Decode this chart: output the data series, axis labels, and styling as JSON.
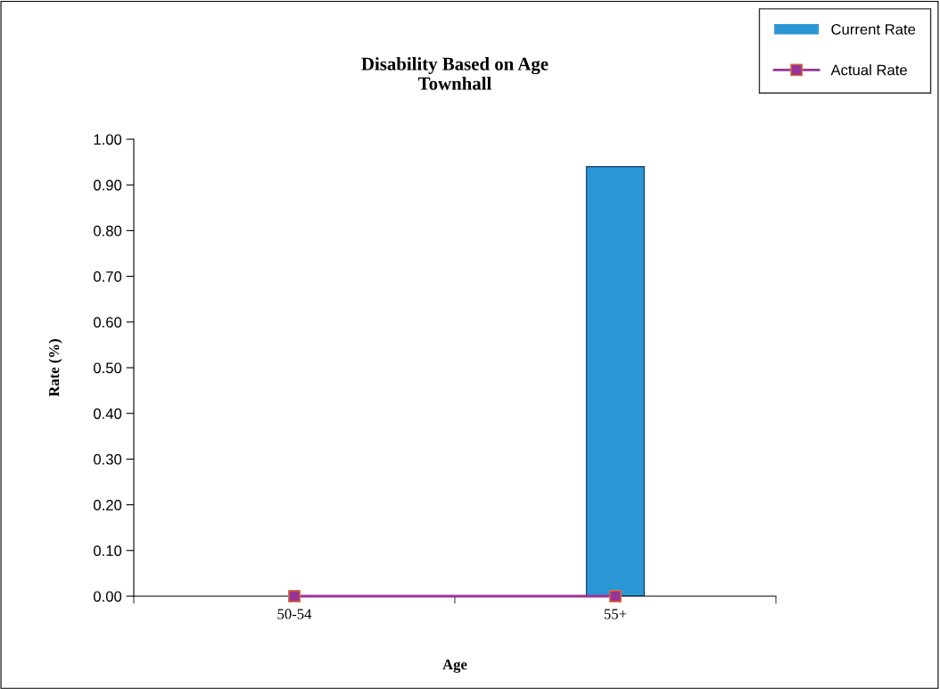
{
  "chart_data": {
    "type": "bar",
    "title": "Disability Based on Age\nTownhall",
    "xlabel": "Age",
    "ylabel": "Rate (%)",
    "categories": [
      "50-54",
      "55+"
    ],
    "series": [
      {
        "name": "Current Rate",
        "color": "#2b96d6",
        "values": [
          0,
          0.94
        ]
      },
      {
        "name": "Actual Rate",
        "type": "line",
        "color": "#993399",
        "values": [
          0,
          0
        ],
        "marker": "square",
        "line_style": "solid"
      }
    ],
    "ylim": [
      0,
      1
    ],
    "yticks": [
      {
        "value": 0,
        "label": "0.00"
      },
      {
        "value": 0.1,
        "label": "0.10"
      },
      {
        "value": 0.2,
        "label": "0.20"
      },
      {
        "value": 0.3,
        "label": "0.30"
      },
      {
        "value": 0.4,
        "label": "0.40"
      },
      {
        "value": 0.5,
        "label": "0.50"
      },
      {
        "value": 0.6,
        "label": "0.60"
      },
      {
        "value": 0.7,
        "label": "0.70"
      },
      {
        "value": 0.8,
        "label": "0.80"
      },
      {
        "value": 0.9,
        "label": "0.90"
      },
      {
        "value": 1,
        "label": "1.00"
      }
    ],
    "grid": false,
    "legend": "top right"
  }
}
